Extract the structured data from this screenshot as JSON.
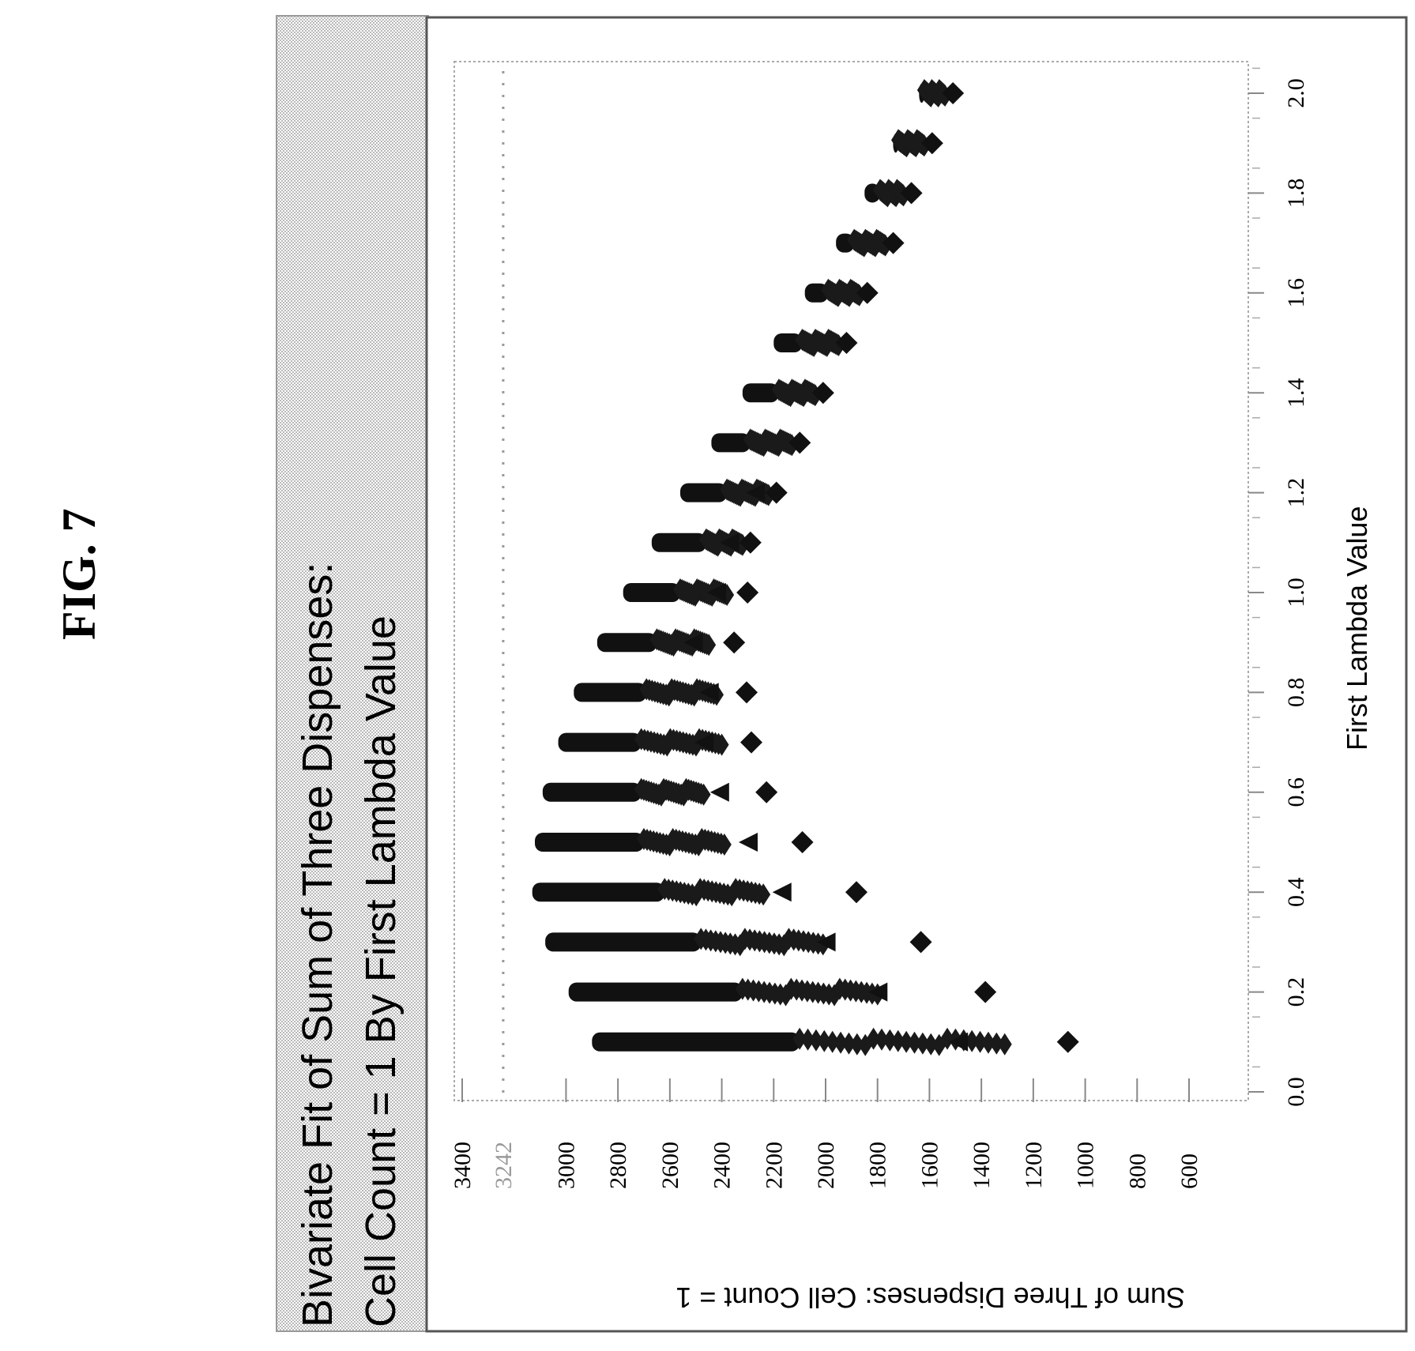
{
  "figure_label": "FIG. 7",
  "chart_data": {
    "type": "scatter",
    "title": "Bivariate Fit of Sum of Three Dispenses: Cell Count = 1 By First Lambda Value",
    "title_lines": [
      "Bivariate Fit of Sum of Three Dispenses:",
      "Cell Count = 1 By First Lambda Value"
    ],
    "xlabel": "First Lambda Value",
    "ylabel": "Sum of Three Dispenses: Cell Count = 1",
    "xlim": [
      0.0,
      2.1
    ],
    "ylim": [
      500,
      3500
    ],
    "x_ticks": [
      "0.0",
      "0.2",
      "0.4",
      "0.6",
      "0.8",
      "1.0",
      "1.2",
      "1.4",
      "1.6",
      "1.8",
      "2.0"
    ],
    "y_ticks": [
      "3400",
      "3000",
      "2800",
      "2600",
      "2400",
      "2200",
      "2000",
      "1800",
      "1600",
      "1400",
      "1200",
      "1000",
      "800",
      "600"
    ],
    "reference_line": {
      "value": 3242,
      "label": "3242"
    },
    "grid": false,
    "series": [
      {
        "marker": "diamond",
        "x": [
          0.1,
          0.2,
          0.3,
          0.4,
          0.5,
          0.6,
          0.7,
          0.8,
          0.9,
          1.0,
          1.1,
          1.2,
          1.3,
          1.4,
          1.5,
          1.6,
          1.7,
          1.8,
          1.9,
          2.0
        ],
        "clusters": [
          {
            "x": 0.1,
            "low": 1310,
            "dense_high": 2100,
            "high": 2900,
            "triangle": 1610,
            "diamond": 1310
          },
          {
            "x": 0.2,
            "low": 1800,
            "dense_high": 2320,
            "high": 2990,
            "triangle": 1920,
            "diamond": 1610
          },
          {
            "x": 0.3,
            "low": 2010,
            "dense_high": 2480,
            "high": 3080,
            "triangle": 2120,
            "diamond": 1840
          },
          {
            "x": 0.4,
            "low": 2240,
            "dense_high": 2620,
            "high": 3130,
            "triangle": 2290,
            "diamond": 2070
          },
          {
            "x": 0.5,
            "low": 2390,
            "dense_high": 2700,
            "high": 3120,
            "triangle": 2420,
            "diamond": 2260
          },
          {
            "x": 0.6,
            "low": 2470,
            "dense_high": 2710,
            "high": 3090,
            "triangle": 2530,
            "diamond": 2380
          },
          {
            "x": 0.7,
            "low": 2400,
            "dense_high": 2710,
            "high": 3030,
            "triangle": 2590,
            "diamond": 2420
          },
          {
            "x": 0.8,
            "low": 2420,
            "dense_high": 2690,
            "high": 2970,
            "triangle": 2570,
            "diamond": 2420
          },
          {
            "x": 0.9,
            "low": 2450,
            "dense_high": 2650,
            "high": 2880,
            "triangle": 2510,
            "diamond": 2450
          },
          {
            "x": 1.0,
            "low": 2380,
            "dense_high": 2560,
            "high": 2780,
            "triangle": 2420,
            "diamond": 2380
          },
          {
            "x": 1.1,
            "low": 2320,
            "dense_high": 2460,
            "high": 2670,
            "triangle": 2370,
            "diamond": 2320
          },
          {
            "x": 1.2,
            "low": 2220,
            "dense_high": 2380,
            "high": 2560,
            "triangle": 2270,
            "diamond": 2220
          },
          {
            "x": 1.3,
            "low": 2130,
            "dense_high": 2290,
            "high": 2440,
            "triangle": 2180,
            "diamond": 2130
          },
          {
            "x": 1.4,
            "low": 2040,
            "dense_high": 2180,
            "high": 2320,
            "triangle": 2070,
            "diamond": 2040
          },
          {
            "x": 1.5,
            "low": 1950,
            "dense_high": 2090,
            "high": 2200,
            "triangle": 1960,
            "diamond": 1950
          },
          {
            "x": 1.6,
            "low": 1870,
            "dense_high": 1990,
            "high": 2080,
            "triangle": 1870,
            "diamond": 1870
          },
          {
            "x": 1.7,
            "low": 1770,
            "dense_high": 1890,
            "high": 1960,
            "triangle": 1770,
            "diamond": 1770
          },
          {
            "x": 1.8,
            "low": 1700,
            "dense_high": 1790,
            "high": 1850,
            "triangle": 1700,
            "diamond": 1700
          },
          {
            "x": 1.9,
            "low": 1620,
            "dense_high": 1720,
            "high": 1740,
            "triangle": 1620,
            "diamond": 1620
          },
          {
            "x": 2.0,
            "low": 1540,
            "dense_high": 1620,
            "high": 1640,
            "triangle": 1540,
            "diamond": 1540
          }
        ]
      }
    ]
  }
}
